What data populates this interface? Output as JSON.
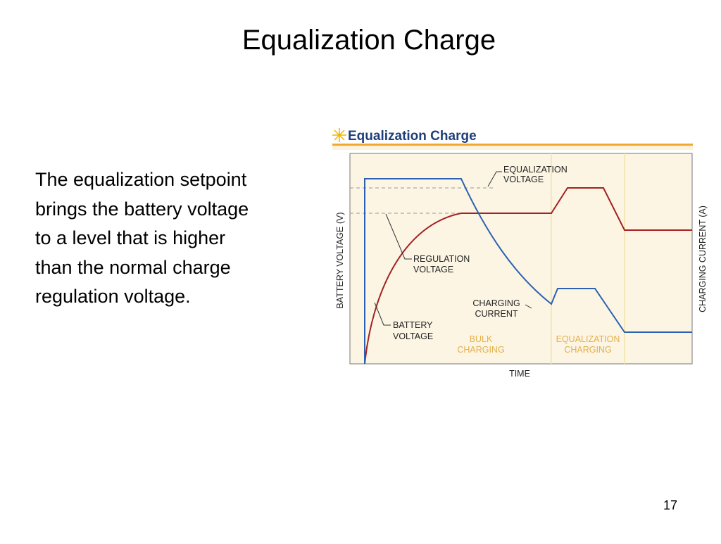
{
  "slide": {
    "title": "Equalization Charge",
    "body": [
      "The equalization setpoint",
      "brings the battery voltage",
      "to a level that is higher",
      "than the normal charge",
      "regulation voltage."
    ],
    "page_number": "17"
  },
  "figure": {
    "title": "Equalization Charge",
    "y_label": "BATTERY VOLTAGE (V)",
    "y2_label": "CHARGING CURRENT (A)",
    "x_label": "TIME",
    "callouts": {
      "equalization_voltage": [
        "EQUALIZATION",
        "VOLTAGE"
      ],
      "regulation_voltage": [
        "REGULATION",
        "VOLTAGE"
      ],
      "charging_current": [
        "CHARGING",
        "CURRENT"
      ],
      "battery_voltage": [
        "BATTERY",
        "VOLTAGE"
      ]
    },
    "stages": {
      "bulk": [
        "BULK",
        "CHARGING"
      ],
      "equalization": [
        "EQUALIZATION",
        "CHARGING"
      ]
    }
  }
}
